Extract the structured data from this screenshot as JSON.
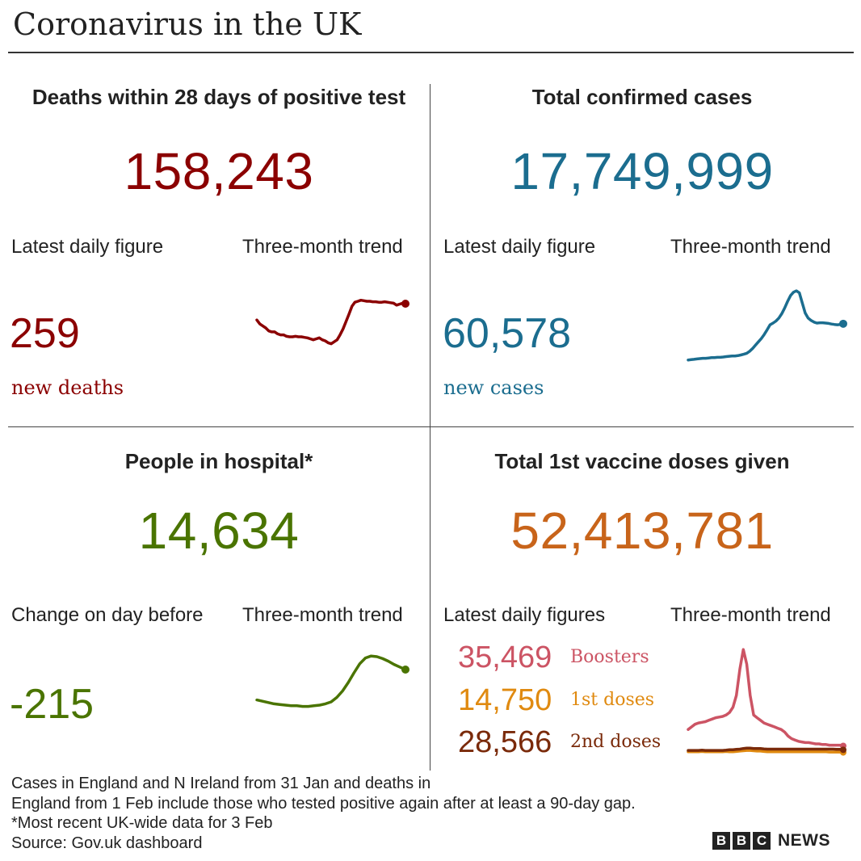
{
  "title": "Coronavirus in the UK",
  "colors": {
    "deaths": "#8b0000",
    "cases": "#1b6d8f",
    "hospital": "#4a7400",
    "vaccine": "#c8641a",
    "boosters": "#cc5464",
    "first_doses": "#e08a10",
    "second_doses": "#7a2a0a"
  },
  "deaths": {
    "title": "Deaths within 28 days of positive test",
    "total": "158,243",
    "latest_label": "Latest daily figure",
    "trend_label": "Three-month trend",
    "latest_value": "259",
    "latest_unit": "new deaths"
  },
  "cases": {
    "title": "Total confirmed cases",
    "total": "17,749,999",
    "latest_label": "Latest daily figure",
    "trend_label": "Three-month trend",
    "latest_value": "60,578",
    "latest_unit": "new cases"
  },
  "hospital": {
    "title": "People in hospital*",
    "total": "14,634",
    "latest_label": "Change on day before",
    "trend_label": "Three-month trend",
    "latest_value": "-215"
  },
  "vaccine": {
    "title": "Total 1st vaccine doses given",
    "total": "52,413,781",
    "latest_label": "Latest daily figures",
    "trend_label": "Three-month trend",
    "figures": [
      {
        "value": "35,469",
        "label": "Boosters"
      },
      {
        "value": "14,750",
        "label": "1st doses"
      },
      {
        "value": "28,566",
        "label": "2nd doses"
      }
    ]
  },
  "footnote": [
    "Cases in England and N Ireland from 31 Jan and deaths in",
    "England from 1 Feb include those who tested positive again after at least a 90-day gap.",
    "*Most recent UK-wide data for 3 Feb",
    "Source: Gov.uk dashboard"
  ],
  "brand": {
    "letters": [
      "B",
      "B",
      "C"
    ],
    "news": "NEWS"
  },
  "chart_data": [
    {
      "type": "line",
      "series": [
        {
          "values": [
            158,
            150,
            146,
            142,
            136,
            134,
            134,
            130,
            128,
            128,
            125,
            124,
            124,
            125,
            124,
            124,
            123,
            122,
            120,
            118,
            120,
            122,
            118,
            116,
            112,
            110,
            114,
            118,
            128,
            140,
            155,
            170,
            186,
            194,
            196,
            198,
            197,
            196,
            196,
            195,
            195,
            194,
            194,
            195,
            194,
            193,
            192,
            188,
            190,
            192,
            191
          ]
        }
      ],
      "ylim": [
        80,
        240
      ]
    },
    {
      "type": "line",
      "series": [
        {
          "values": [
            20,
            21,
            22,
            23,
            24,
            25,
            25,
            26,
            27,
            27,
            28,
            28,
            29,
            30,
            31,
            32,
            32,
            33,
            35,
            37,
            40,
            46,
            54,
            64,
            74,
            84,
            96,
            110,
            125,
            130,
            136,
            145,
            158,
            175,
            195,
            212,
            222,
            226,
            220,
            190,
            160,
            145,
            138,
            133,
            130,
            131,
            131,
            130,
            129,
            127,
            126,
            125,
            126,
            128
          ]
        }
      ],
      "ylim": [
        0,
        260
      ]
    },
    {
      "type": "line",
      "series": [
        {
          "values": [
            7.8,
            7.6,
            7.4,
            7.2,
            7.1,
            7.0,
            6.9,
            6.9,
            6.8,
            6.8,
            6.9,
            7.0,
            7.2,
            7.5,
            8.2,
            9.2,
            10.5,
            12.0,
            13.4,
            14.3,
            14.6,
            14.5,
            14.2,
            13.8,
            13.3,
            12.9,
            12.5
          ]
        }
      ],
      "ylim": [
        5,
        16
      ]
    },
    {
      "type": "line",
      "series": [
        {
          "name": "Boosters",
          "values": [
            190,
            210,
            230,
            240,
            245,
            250,
            260,
            270,
            280,
            285,
            290,
            300,
            320,
            360,
            450,
            650,
            800,
            690,
            450,
            300,
            280,
            260,
            240,
            230,
            220,
            210,
            200,
            190,
            170,
            140,
            120,
            110,
            100,
            95,
            90,
            90,
            85,
            80,
            80,
            75,
            75,
            70,
            70,
            70,
            70,
            65
          ]
        },
        {
          "name": "1st doses",
          "values": [
            20,
            20,
            20,
            20,
            22,
            20,
            20,
            20,
            20,
            20,
            20,
            22,
            20,
            20,
            22,
            25,
            28,
            30,
            30,
            28,
            25,
            25,
            22,
            20,
            20,
            20,
            20,
            20,
            20,
            20,
            20,
            20,
            20,
            20,
            20,
            20,
            20,
            20,
            20,
            20,
            20,
            18,
            18,
            18,
            18,
            15
          ]
        },
        {
          "name": "2nd doses",
          "values": [
            30,
            30,
            30,
            30,
            32,
            30,
            30,
            30,
            30,
            30,
            30,
            32,
            35,
            35,
            38,
            40,
            45,
            48,
            48,
            45,
            45,
            45,
            42,
            40,
            40,
            40,
            40,
            40,
            40,
            40,
            40,
            40,
            40,
            40,
            40,
            40,
            40,
            40,
            40,
            40,
            40,
            40,
            40,
            38,
            38,
            35
          ]
        }
      ],
      "ylim": [
        0,
        820
      ]
    }
  ]
}
